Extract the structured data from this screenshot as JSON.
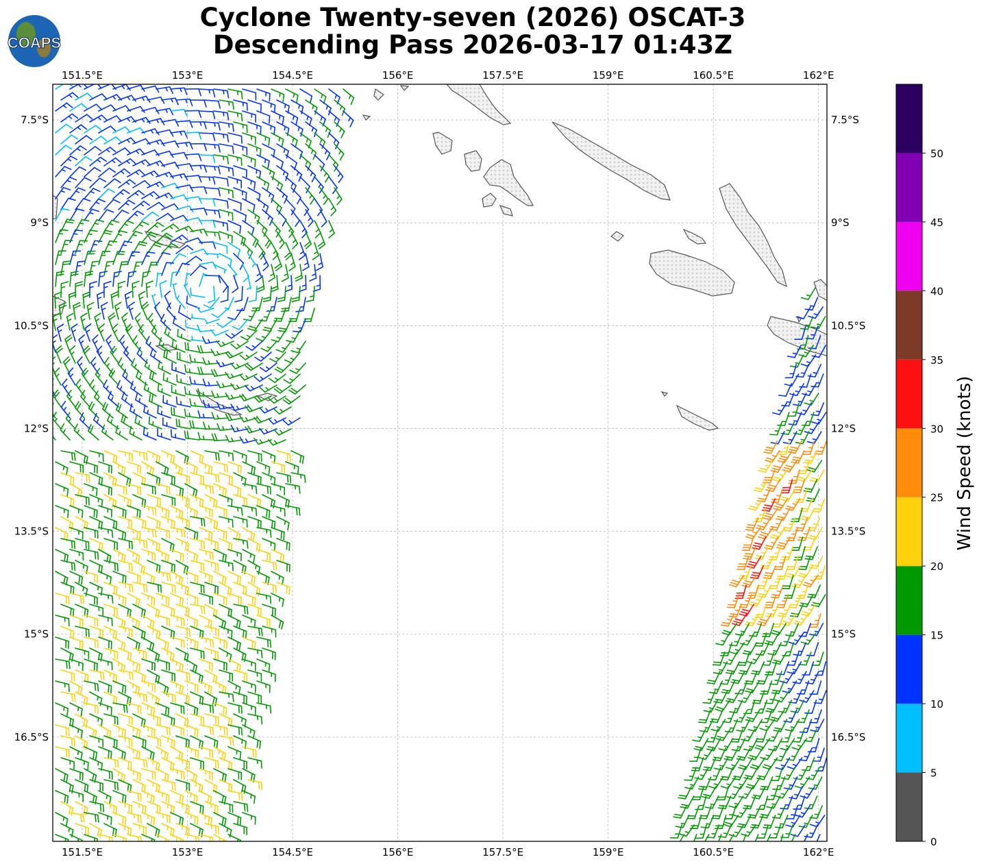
{
  "title": {
    "line1": "Cyclone Twenty-seven (2026) OSCAT-3",
    "line2": "Descending Pass 2026-03-17 01:43Z"
  },
  "logo": {
    "text": "COAPS",
    "icon": "globe-icon"
  },
  "map": {
    "lon_range": [
      151.08,
      162.12
    ],
    "lat_range": [
      -18.02,
      -6.98
    ],
    "lon_ticks": [
      "151.5°E",
      "153°E",
      "154.5°E",
      "156°E",
      "157.5°E",
      "159°E",
      "160.5°E",
      "162°E"
    ],
    "lat_ticks": [
      "7.5°S",
      "9°S",
      "10.5°S",
      "12°S",
      "13.5°S",
      "15°S",
      "16.5°S"
    ],
    "grid": true,
    "land_style": "white with grey terrain shading",
    "barb_units": "knots"
  },
  "colorbar": {
    "label": "Wind Speed (knots)",
    "tick_labels": [
      "0",
      "5",
      "10",
      "15",
      "20",
      "25",
      "30",
      "35",
      "40",
      "45",
      "50"
    ],
    "bins": [
      {
        "from": 0,
        "to": 5,
        "color": "#555555"
      },
      {
        "from": 5,
        "to": 10,
        "color": "#00bfff"
      },
      {
        "from": 10,
        "to": 15,
        "color": "#0033ff"
      },
      {
        "from": 15,
        "to": 20,
        "color": "#009a00"
      },
      {
        "from": 20,
        "to": 25,
        "color": "#ffd20d"
      },
      {
        "from": 25,
        "to": 30,
        "color": "#ff8c0a"
      },
      {
        "from": 30,
        "to": 35,
        "color": "#ff1010"
      },
      {
        "from": 35,
        "to": 40,
        "color": "#7d3b27"
      },
      {
        "from": 40,
        "to": 45,
        "color": "#f000f0"
      },
      {
        "from": 45,
        "to": 50,
        "color": "#8000b3"
      },
      {
        "from": 50,
        "to": 55,
        "color": "#2c0060"
      }
    ]
  }
}
